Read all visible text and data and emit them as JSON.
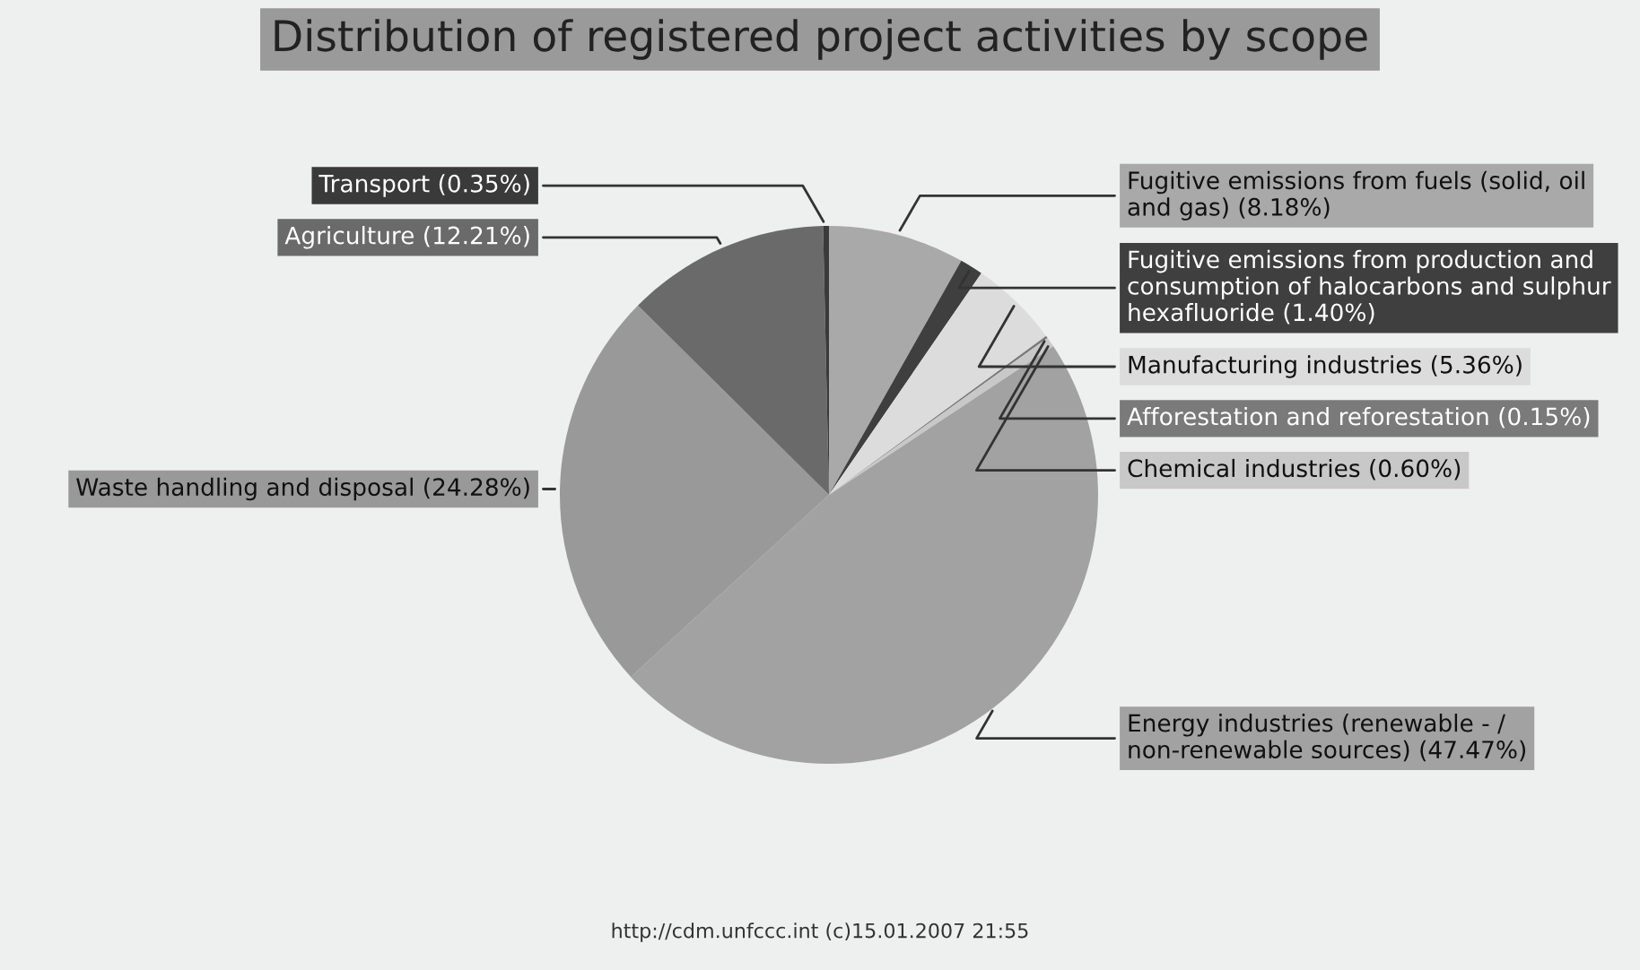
{
  "chart_data": {
    "type": "pie",
    "title": "Distribution of registered project activities by scope",
    "categories": [
      "Fugitive emissions from fuels (solid, oil and gas)",
      "Fugitive emissions from production and consumption of halocarbons and sulphur hexafluoride",
      "Manufacturing industries",
      "Afforestation and reforestation",
      "Chemical industries",
      "Energy industries (renewable - / non-renewable sources)",
      "Waste handling and disposal",
      "Agriculture",
      "Transport"
    ],
    "values": [
      8.18,
      1.4,
      5.36,
      0.15,
      0.6,
      47.47,
      24.28,
      12.21,
      0.35
    ],
    "value_labels": [
      "(8.18%)",
      "(1.40%)",
      "(5.36%)",
      "(0.15%)",
      "(0.60%)",
      "(47.47%)",
      "(24.28%)",
      "(12.21%)",
      "(0.35%)"
    ],
    "colors": [
      "#a9a9a9",
      "#3f3f3f",
      "#dcdcdc",
      "#7a7a7a",
      "#c8c8c8",
      "#a2a2a2",
      "#999999",
      "#6a6a6a",
      "#3a3a3a"
    ],
    "annotations": [
      "http://cdm.unfccc.int (c)15.01.2007 21:55"
    ]
  }
}
